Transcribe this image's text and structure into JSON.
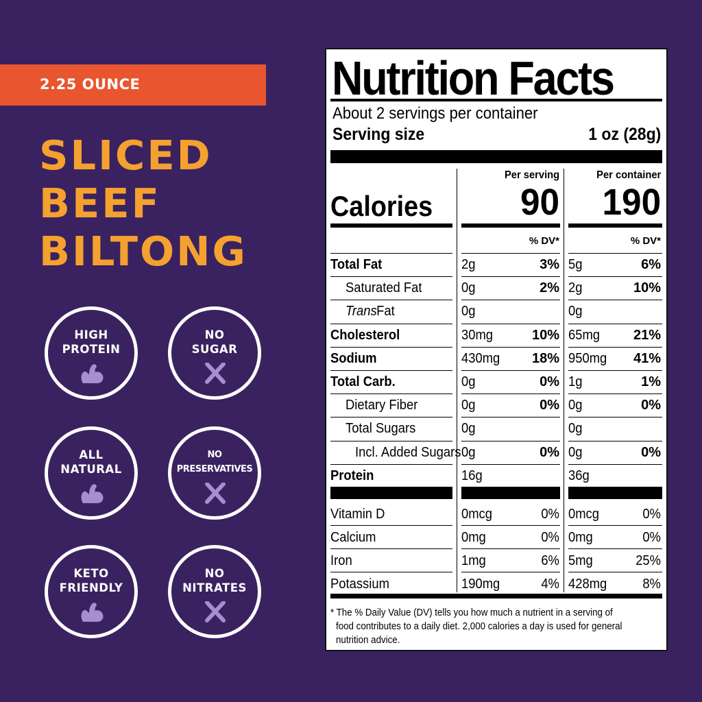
{
  "size_label": "2.25 OUNCE",
  "product_title": [
    "SLICED",
    "BEEF",
    "BILTONG"
  ],
  "badges": [
    {
      "line1": "HIGH",
      "line2": "PROTEIN",
      "icon": "arm-flex-icon"
    },
    {
      "line1": "NO",
      "line2": "SUGAR",
      "icon": "x-icon"
    },
    {
      "line1": "ALL",
      "line2": "NATURAL",
      "icon": "arm-flex-icon"
    },
    {
      "line1": "NO",
      "line2": "PRESERVATIVES",
      "icon": "x-icon"
    },
    {
      "line1": "KETO",
      "line2": "FRIENDLY",
      "icon": "arm-flex-icon"
    },
    {
      "line1": "NO",
      "line2": "NITRATES",
      "icon": "x-icon"
    }
  ],
  "nutrition": {
    "title": "Nutrition Facts",
    "servings": "About 2 servings per container",
    "serving_size_label": "Serving size",
    "serving_size_value": "1 oz (28g)",
    "per_serving": "Per serving",
    "per_container": "Per container",
    "calories_label": "Calories",
    "calories_serving": "90",
    "calories_container": "190",
    "dv_header": "% DV*",
    "rows": [
      {
        "name": "Total Fat",
        "s_amt": "2g",
        "s_dv": "3%",
        "c_amt": "5g",
        "c_dv": "6%"
      },
      {
        "name": "Saturated Fat",
        "s_amt": "0g",
        "s_dv": "2%",
        "c_amt": "2g",
        "c_dv": "10%"
      },
      {
        "name_italic": "Trans",
        "name": " Fat",
        "s_amt": "0g",
        "s_dv": "",
        "c_amt": "0g",
        "c_dv": ""
      },
      {
        "name": "Cholesterol",
        "s_amt": "30mg",
        "s_dv": "10%",
        "c_amt": "65mg",
        "c_dv": "21%"
      },
      {
        "name": "Sodium",
        "s_amt": "430mg",
        "s_dv": "18%",
        "c_amt": "950mg",
        "c_dv": "41%"
      },
      {
        "name": "Total Carb.",
        "s_amt": "0g",
        "s_dv": "0%",
        "c_amt": "1g",
        "c_dv": "1%"
      },
      {
        "name": "Dietary Fiber",
        "s_amt": "0g",
        "s_dv": "0%",
        "c_amt": "0g",
        "c_dv": "0%"
      },
      {
        "name": "Total Sugars",
        "s_amt": "0g",
        "s_dv": "",
        "c_amt": "0g",
        "c_dv": ""
      },
      {
        "name": "Incl. Added Sugars",
        "s_amt": "0g",
        "s_dv": "0%",
        "c_amt": "0g",
        "c_dv": "0%"
      },
      {
        "name": "Protein",
        "s_amt": "16g",
        "s_dv": "",
        "c_amt": "36g",
        "c_dv": ""
      }
    ],
    "vitamins": [
      {
        "name": "Vitamin D",
        "s_amt": "0mcg",
        "s_dv": "0%",
        "c_amt": "0mcg",
        "c_dv": "0%"
      },
      {
        "name": "Calcium",
        "s_amt": "0mg",
        "s_dv": "0%",
        "c_amt": "0mg",
        "c_dv": "0%"
      },
      {
        "name": "Iron",
        "s_amt": "1mg",
        "s_dv": "6%",
        "c_amt": "5mg",
        "c_dv": "25%"
      },
      {
        "name": "Potassium",
        "s_amt": "190mg",
        "s_dv": "4%",
        "c_amt": "428mg",
        "c_dv": "8%"
      }
    ],
    "footnote": [
      "* The % Daily Value (DV) tells you how much a nutrient in a serving of",
      "food contributes to a daily diet. 2,000 calories a day is used for general",
      "nutrition advice."
    ]
  }
}
